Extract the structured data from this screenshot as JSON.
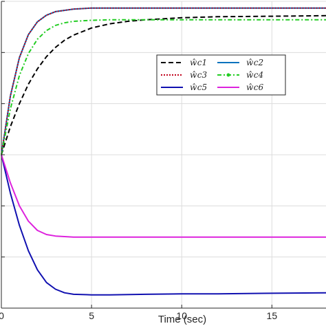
{
  "chart_data": {
    "type": "line",
    "xlabel": "Time (sec)",
    "ylabel": "",
    "title": "",
    "xlim": [
      0,
      18
    ],
    "ylim": [
      -3.0,
      3.0
    ],
    "xticks": [
      0,
      5,
      10,
      15
    ],
    "grid": true,
    "legend_position": "top-right",
    "series": [
      {
        "name": "ŵc1",
        "color": "#000000",
        "style": "dashed",
        "x": [
          0,
          0.5,
          1,
          1.5,
          2,
          2.5,
          3,
          3.5,
          4,
          5,
          6,
          7,
          8,
          10,
          12,
          15,
          18
        ],
        "y": [
          0,
          0.55,
          1.0,
          1.38,
          1.68,
          1.92,
          2.1,
          2.24,
          2.34,
          2.48,
          2.56,
          2.61,
          2.64,
          2.68,
          2.7,
          2.71,
          2.72
        ]
      },
      {
        "name": "ŵc2",
        "color": "#0072BD",
        "style": "solid",
        "x": [
          0,
          0.5,
          1,
          1.5,
          2,
          2.5,
          3,
          4,
          5,
          6,
          8,
          10,
          12,
          15,
          18
        ],
        "y": [
          0,
          1.15,
          1.9,
          2.35,
          2.6,
          2.73,
          2.8,
          2.85,
          2.87,
          2.87,
          2.87,
          2.87,
          2.87,
          2.87,
          2.87
        ]
      },
      {
        "name": "ŵc3",
        "color": "#C0001A",
        "style": "dotted",
        "x": [
          0,
          0.5,
          1,
          1.5,
          2,
          2.5,
          3,
          4,
          5,
          6,
          8,
          10,
          12,
          15,
          18
        ],
        "y": [
          0,
          1.15,
          1.9,
          2.35,
          2.6,
          2.73,
          2.8,
          2.85,
          2.87,
          2.87,
          2.87,
          2.87,
          2.87,
          2.87,
          2.87
        ]
      },
      {
        "name": "ŵc4",
        "color": "#22CC22",
        "style": "dashdot",
        "x": [
          0,
          0.5,
          1,
          1.5,
          2,
          2.5,
          3,
          3.5,
          4,
          5,
          6,
          7,
          8,
          10,
          12,
          15,
          18
        ],
        "y": [
          0,
          0.9,
          1.55,
          1.98,
          2.26,
          2.43,
          2.53,
          2.58,
          2.61,
          2.63,
          2.64,
          2.64,
          2.64,
          2.64,
          2.64,
          2.64,
          2.64
        ]
      },
      {
        "name": "ŵc5",
        "color": "#1010B0",
        "style": "solid",
        "x": [
          0,
          0.5,
          1,
          1.5,
          2,
          2.5,
          3,
          3.5,
          4,
          5,
          6,
          8,
          10,
          12,
          15,
          18
        ],
        "y": [
          0,
          -0.75,
          -1.38,
          -1.88,
          -2.25,
          -2.5,
          -2.63,
          -2.7,
          -2.73,
          -2.74,
          -2.74,
          -2.73,
          -2.72,
          -2.72,
          -2.71,
          -2.7
        ]
      },
      {
        "name": "ŵc6",
        "color": "#DD22DD",
        "style": "solid",
        "x": [
          0,
          0.5,
          1,
          1.5,
          2,
          2.5,
          3,
          4,
          5,
          6,
          8,
          10,
          12,
          15,
          18
        ],
        "y": [
          0,
          -0.55,
          -1.0,
          -1.3,
          -1.48,
          -1.56,
          -1.59,
          -1.61,
          -1.61,
          -1.61,
          -1.61,
          -1.61,
          -1.61,
          -1.61,
          -1.61
        ]
      }
    ]
  }
}
